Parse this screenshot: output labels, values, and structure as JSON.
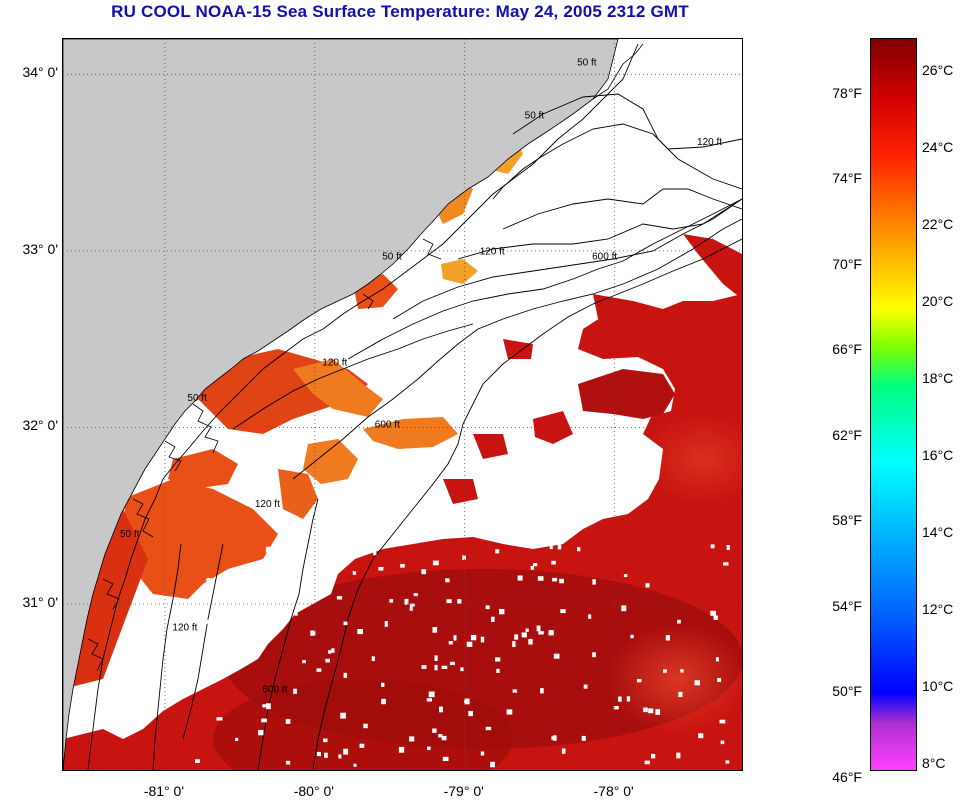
{
  "title": "RU COOL  NOAA-15  Sea Surface Temperature:  May 24, 2005 2312 GMT",
  "map": {
    "lat_ticks": [
      {
        "label": "34° 0'",
        "value": 34
      },
      {
        "label": "33° 0'",
        "value": 33
      },
      {
        "label": "32° 0'",
        "value": 32
      },
      {
        "label": "31° 0'",
        "value": 31
      }
    ],
    "lon_ticks": [
      {
        "label": "-81° 0'",
        "value": -81
      },
      {
        "label": "-80° 0'",
        "value": -80
      },
      {
        "label": "-79° 0'",
        "value": -79
      },
      {
        "label": "-78° 0'",
        "value": -78
      }
    ],
    "lat_range": [
      30.06,
      34.2
    ],
    "lon_range": [
      -81.68,
      -77.15
    ],
    "contour_labels": [
      {
        "text": "50 ft",
        "lon": -78.25,
        "lat": 34.05
      },
      {
        "text": "50 ft",
        "lon": -78.6,
        "lat": 33.75
      },
      {
        "text": "120 ft",
        "lon": -77.45,
        "lat": 33.6
      },
      {
        "text": "120 ft",
        "lon": -78.9,
        "lat": 32.98
      },
      {
        "text": "600 ft",
        "lon": -78.15,
        "lat": 32.95
      },
      {
        "text": "50 ft",
        "lon": -79.55,
        "lat": 32.95
      },
      {
        "text": "120 ft",
        "lon": -79.95,
        "lat": 32.35
      },
      {
        "text": "600 ft",
        "lon": -79.6,
        "lat": 32.0
      },
      {
        "text": "50 ft",
        "lon": -80.85,
        "lat": 32.15
      },
      {
        "text": "120 ft",
        "lon": -80.4,
        "lat": 31.55
      },
      {
        "text": "50 ft",
        "lon": -81.3,
        "lat": 31.38
      },
      {
        "text": "120 ft",
        "lon": -80.95,
        "lat": 30.85
      },
      {
        "text": "600 ft",
        "lon": -80.35,
        "lat": 30.5
      }
    ],
    "colors": {
      "land": "#c8c8c8",
      "cloud": "#ffffff",
      "warm_water": "#c81410",
      "gulf_stream": "#a00c0c",
      "nearshore": "#e85018",
      "contour": "#000000",
      "grid": "#555555"
    }
  },
  "colorbar": {
    "range_c": [
      8,
      27
    ],
    "stops": [
      {
        "c": 8,
        "color": "#ff40ff"
      },
      {
        "c": 9.2,
        "color": "#b030d0"
      },
      {
        "c": 10,
        "color": "#0000ff"
      },
      {
        "c": 12,
        "color": "#0060ff"
      },
      {
        "c": 14,
        "color": "#00b0ff"
      },
      {
        "c": 16,
        "color": "#00ffff"
      },
      {
        "c": 18,
        "color": "#00ff80"
      },
      {
        "c": 19,
        "color": "#80ff00"
      },
      {
        "c": 20,
        "color": "#ffff00"
      },
      {
        "c": 22,
        "color": "#ff9000"
      },
      {
        "c": 24,
        "color": "#ff2000"
      },
      {
        "c": 25.5,
        "color": "#d00000"
      },
      {
        "c": 27,
        "color": "#800000"
      }
    ],
    "celsius_labels": [
      {
        "label": "26°C",
        "c": 26
      },
      {
        "label": "24°C",
        "c": 24
      },
      {
        "label": "22°C",
        "c": 22
      },
      {
        "label": "20°C",
        "c": 20
      },
      {
        "label": "18°C",
        "c": 18
      },
      {
        "label": "16°C",
        "c": 16
      },
      {
        "label": "14°C",
        "c": 14
      },
      {
        "label": "12°C",
        "c": 12
      },
      {
        "label": "10°C",
        "c": 10
      },
      {
        "label": "8°C",
        "c": 8
      }
    ],
    "fahrenheit_labels": [
      {
        "label": "78°F",
        "f": 78
      },
      {
        "label": "74°F",
        "f": 74
      },
      {
        "label": "70°F",
        "f": 70
      },
      {
        "label": "66°F",
        "f": 66
      },
      {
        "label": "62°F",
        "f": 62
      },
      {
        "label": "58°F",
        "f": 58
      },
      {
        "label": "54°F",
        "f": 54
      },
      {
        "label": "50°F",
        "f": 50
      },
      {
        "label": "46°F",
        "f": 46
      }
    ]
  }
}
